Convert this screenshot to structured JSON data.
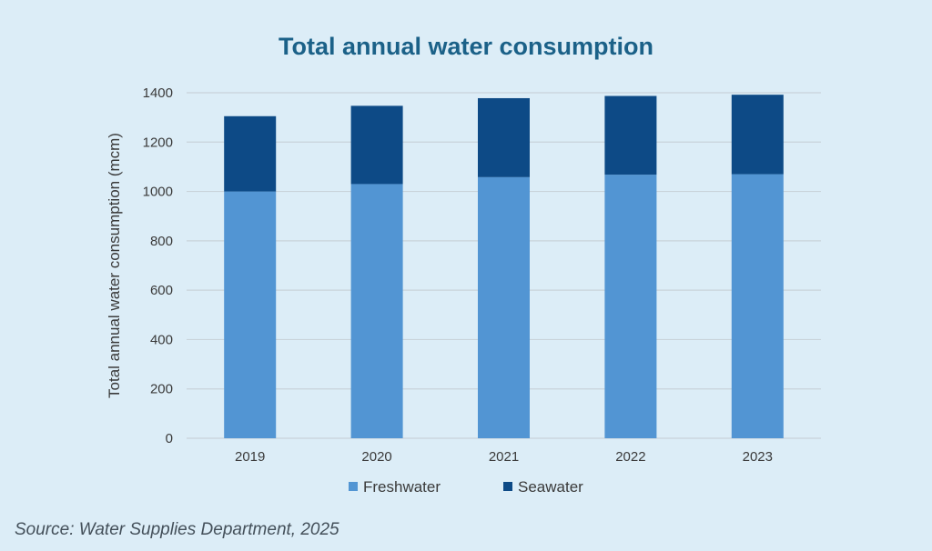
{
  "colors": {
    "background": "#dcedf7",
    "title": "#1b6188",
    "freshwater": "#5295d3",
    "seawater": "#0d4a86",
    "gridline": "#c9d3da",
    "axis_text": "#3a3a3a"
  },
  "source_text": "Source: Water Supplies Department, 2025",
  "chart_data": {
    "type": "bar",
    "stacked": true,
    "title": "Total annual water consumption",
    "xlabel": "",
    "ylabel": "Total annual water consumption (mcm)",
    "categories": [
      "2019",
      "2020",
      "2021",
      "2022",
      "2023"
    ],
    "series": [
      {
        "name": "Freshwater",
        "values": [
          1000,
          1030,
          1058,
          1068,
          1070
        ]
      },
      {
        "name": "Seawater",
        "values": [
          305,
          317,
          320,
          319,
          322
        ]
      }
    ],
    "ylim": [
      0,
      1400
    ],
    "yticks": [
      0,
      200,
      400,
      600,
      800,
      1000,
      1200,
      1400
    ],
    "grid": true,
    "legend_position": "bottom"
  }
}
